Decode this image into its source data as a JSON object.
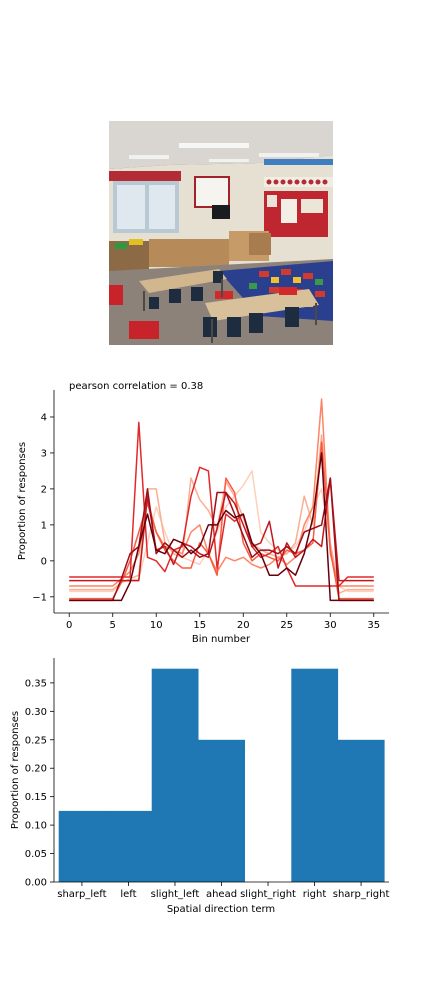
{
  "colors": {
    "bar_fill": "#1f77b4",
    "axis": "#000000",
    "line_palette": [
      "#fdd0bd",
      "#fcae92",
      "#fc8565",
      "#f95b42",
      "#e2292a",
      "#c21820",
      "#9e0e18",
      "#67000d"
    ]
  },
  "photo": {
    "description_icon": "classroom-photo"
  },
  "chart_data": [
    {
      "type": "line",
      "title": "pearson correlation = 0.38",
      "xlabel": "Bin number",
      "ylabel": "Proportion of responses",
      "xlim": [
        -1.75,
        36.75
      ],
      "ylim": [
        -1.45,
        4.75
      ],
      "xticks": [
        0,
        5,
        10,
        15,
        20,
        25,
        30,
        35
      ],
      "yticks": [
        -1,
        0,
        1,
        2,
        3,
        4
      ],
      "series": [
        {
          "color": "#fdd0bd",
          "values": [
            -0.85,
            -0.85,
            -0.85,
            -0.85,
            -0.85,
            -0.85,
            -0.6,
            -0.55,
            -0.5,
            0.5,
            1.5,
            0.8,
            0.2,
            0.1,
            0.0,
            -0.1,
            0.3,
            0.8,
            1.5,
            1.8,
            2.1,
            2.5,
            0.8,
            0.5,
            0.3,
            0.2,
            0.4,
            0.8,
            1.5,
            2.0,
            0.5,
            -0.7,
            -0.85,
            -0.85,
            -0.85,
            -0.85
          ]
        },
        {
          "color": "#fcae92",
          "values": [
            -0.8,
            -0.8,
            -0.8,
            -0.8,
            -0.8,
            -0.8,
            -0.6,
            -0.5,
            -0.4,
            2.0,
            2.0,
            0.5,
            0.2,
            0.1,
            2.3,
            1.7,
            1.4,
            0.9,
            2.2,
            1.8,
            1.2,
            0.5,
            0.3,
            0.2,
            0.1,
            0.2,
            0.5,
            1.8,
            1.0,
            3.5,
            0.5,
            -0.9,
            -0.8,
            -0.8,
            -0.8,
            -0.8
          ]
        },
        {
          "color": "#fc8565",
          "values": [
            -0.7,
            -0.7,
            -0.7,
            -0.7,
            -0.7,
            -0.7,
            -0.5,
            -0.3,
            0.2,
            1.7,
            0.8,
            0.4,
            0.3,
            0.2,
            0.8,
            1.0,
            0.2,
            -0.3,
            0.1,
            0.0,
            0.1,
            -0.1,
            -0.2,
            -0.1,
            0.1,
            -0.1,
            0.1,
            1.0,
            1.5,
            4.5,
            0.2,
            -0.7,
            -0.7,
            -0.7,
            -0.7,
            -0.7
          ]
        },
        {
          "color": "#f95b42",
          "values": [
            -1.05,
            -1.05,
            -1.05,
            -1.05,
            -1.05,
            -1.05,
            -0.6,
            0.0,
            0.8,
            1.6,
            0.8,
            0.3,
            0.0,
            -0.2,
            -0.2,
            0.5,
            0.2,
            -0.4,
            2.3,
            1.9,
            0.5,
            0.0,
            0.2,
            0.1,
            0.0,
            0.3,
            0.2,
            0.3,
            0.5,
            3.3,
            0.3,
            -1.05,
            -1.05,
            -1.05,
            -1.05,
            -1.05
          ]
        },
        {
          "color": "#e2292a",
          "values": [
            -0.45,
            -0.45,
            -0.45,
            -0.45,
            -0.45,
            -0.45,
            -0.45,
            -0.45,
            3.85,
            0.1,
            0.0,
            -0.3,
            0.3,
            0.4,
            1.8,
            2.6,
            2.5,
            -0.2,
            1.3,
            1.1,
            1.3,
            0.4,
            0.1,
            0.2,
            0.4,
            -0.2,
            -0.7,
            -0.7,
            -0.7,
            -0.7,
            -0.7,
            -0.7,
            -0.45,
            -0.45,
            -0.45,
            -0.45
          ]
        },
        {
          "color": "#c21820",
          "values": [
            -0.55,
            -0.55,
            -0.55,
            -0.55,
            -0.55,
            -0.55,
            -0.55,
            -0.55,
            -0.55,
            1.8,
            0.3,
            0.4,
            -0.1,
            0.5,
            0.4,
            0.2,
            0.1,
            0.9,
            1.9,
            1.6,
            1.0,
            0.4,
            0.5,
            1.1,
            -0.2,
            0.5,
            0.1,
            0.3,
            0.6,
            0.4,
            2.3,
            -0.55,
            -0.55,
            -0.55,
            -0.55,
            -0.55
          ]
        },
        {
          "color": "#9e0e18",
          "values": [
            -1.1,
            -1.1,
            -1.1,
            -1.1,
            -1.1,
            -1.1,
            -0.5,
            0.2,
            0.4,
            2.0,
            0.2,
            0.5,
            0.3,
            0.1,
            0.3,
            0.1,
            0.2,
            1.9,
            1.9,
            1.3,
            0.7,
            0.1,
            0.3,
            0.3,
            0.2,
            0.4,
            0.2,
            0.8,
            0.9,
            1.0,
            2.3,
            -1.1,
            -1.1,
            -1.1,
            -1.1,
            -1.1
          ]
        },
        {
          "color": "#67000d",
          "values": [
            -1.1,
            -1.1,
            -1.1,
            -1.1,
            -1.1,
            -1.1,
            -1.1,
            -0.6,
            0.4,
            1.3,
            0.3,
            0.2,
            0.6,
            0.5,
            0.2,
            0.4,
            1.0,
            1.0,
            1.4,
            1.2,
            1.3,
            0.5,
            0.2,
            -0.4,
            -0.4,
            -0.2,
            -0.4,
            0.2,
            1.2,
            3.0,
            -1.1,
            -1.1,
            -1.1,
            -1.1,
            -1.1,
            -1.1
          ]
        }
      ]
    },
    {
      "type": "bar",
      "xlabel": "Spatial direction term",
      "ylabel": "Proportion of responses",
      "ylim": [
        0,
        0.39375
      ],
      "yticks": [
        0.0,
        0.05,
        0.1,
        0.15,
        0.2,
        0.25,
        0.3,
        0.35
      ],
      "ytick_labels": [
        "0.00",
        "0.05",
        "0.10",
        "0.15",
        "0.20",
        "0.25",
        "0.30",
        "0.35"
      ],
      "categories": [
        "sharp_left",
        "left",
        "slight_left",
        "ahead",
        "slight_right",
        "right",
        "sharp_right"
      ],
      "values": [
        0.125,
        0.125,
        0.375,
        0.25,
        0.0,
        0.375,
        0.25
      ]
    }
  ]
}
